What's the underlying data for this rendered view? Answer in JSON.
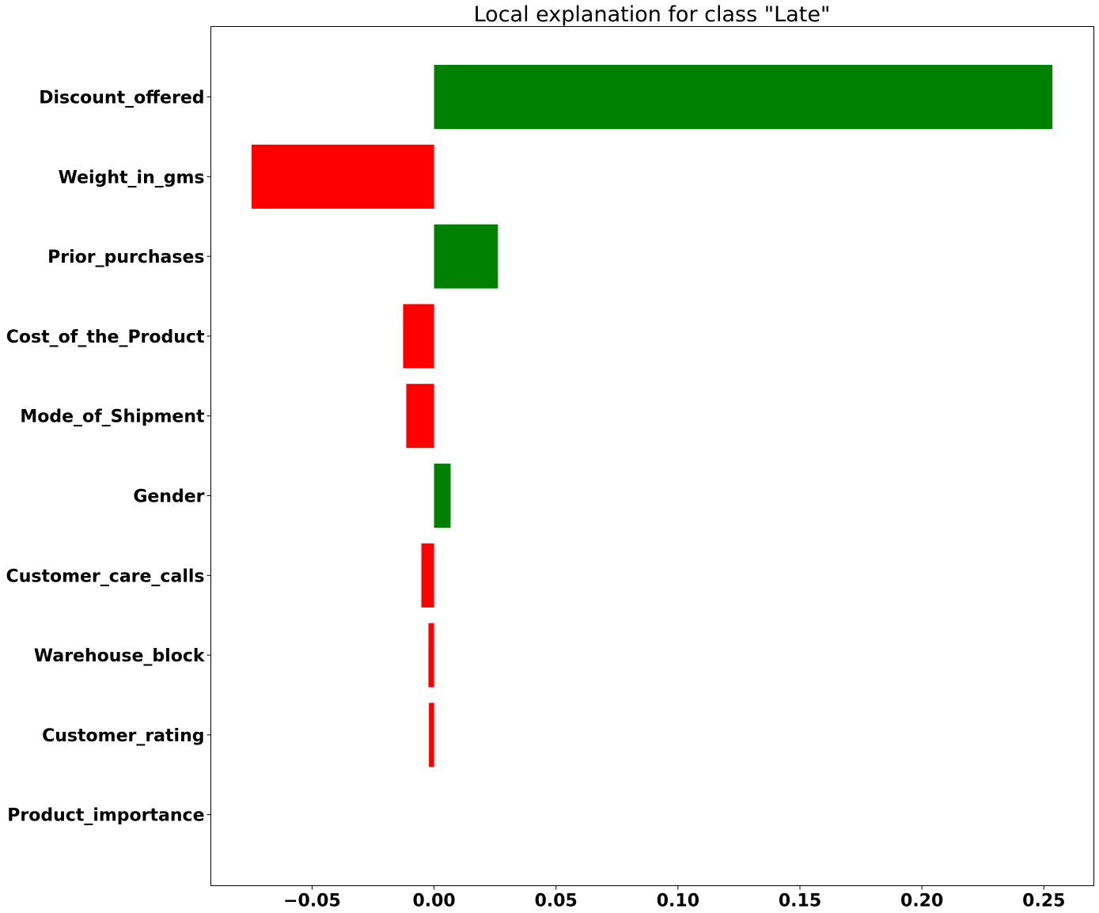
{
  "chart_data": {
    "type": "bar",
    "orientation": "horizontal",
    "title": "Local explanation for class \"Late\"",
    "xlabel": "",
    "ylabel": "",
    "categories": [
      "Discount_offered",
      "Weight_in_gms",
      "Prior_purchases",
      "Cost_of_the_Product",
      "Mode_of_Shipment",
      "Gender",
      "Customer_care_calls",
      "Warehouse_block",
      "Customer_rating",
      "Product_importance"
    ],
    "values": [
      0.2535,
      -0.0748,
      0.0262,
      -0.0127,
      -0.0114,
      0.0068,
      -0.0052,
      -0.0023,
      -0.0021,
      0.0
    ],
    "xlim": [
      -0.0915,
      0.2705
    ],
    "xticks": [
      -0.05,
      0.0,
      0.05,
      0.1,
      0.15,
      0.2,
      0.25
    ],
    "xtick_labels": [
      "−0.05",
      "0.00",
      "0.05",
      "0.10",
      "0.15",
      "0.20",
      "0.25"
    ],
    "colors": {
      "positive": "#008000",
      "negative": "#ff0000"
    },
    "grid": false,
    "legend": "none"
  }
}
